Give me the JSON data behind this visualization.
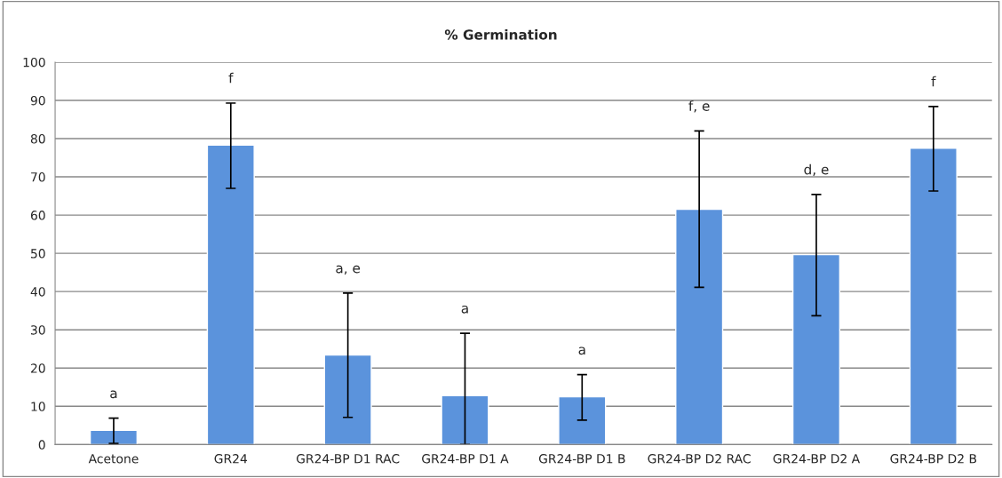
{
  "chart_data": {
    "type": "bar",
    "title": "% Germination",
    "categories": [
      "Acetone",
      "GR24",
      "GR24-BP D1 RAC",
      "GR24-BP D1 A",
      "GR24-BP D1 B",
      "GR24-BP D2 RAC",
      "GR24-BP D2 A",
      "GR24-BP D2 B"
    ],
    "values": [
      3.7,
      78.3,
      23.4,
      12.8,
      12.5,
      61.5,
      49.7,
      77.5
    ],
    "errors": [
      [
        0.3,
        6.9
      ],
      [
        67.0,
        89.3
      ],
      [
        7.1,
        39.6
      ],
      [
        0,
        29.1
      ],
      [
        6.4,
        18.3
      ],
      [
        41.1,
        82.0
      ],
      [
        33.7,
        65.4
      ],
      [
        66.3,
        88.4
      ]
    ],
    "color": "#5b93dc",
    "ylim": [
      0,
      100
    ],
    "yticks": [
      0,
      10,
      20,
      30,
      40,
      50,
      60,
      70,
      80,
      90,
      100
    ],
    "grid": "y",
    "annotations": [
      "a",
      "f",
      "a, e",
      "a",
      "a",
      "f, e",
      "d, e",
      "f"
    ]
  }
}
